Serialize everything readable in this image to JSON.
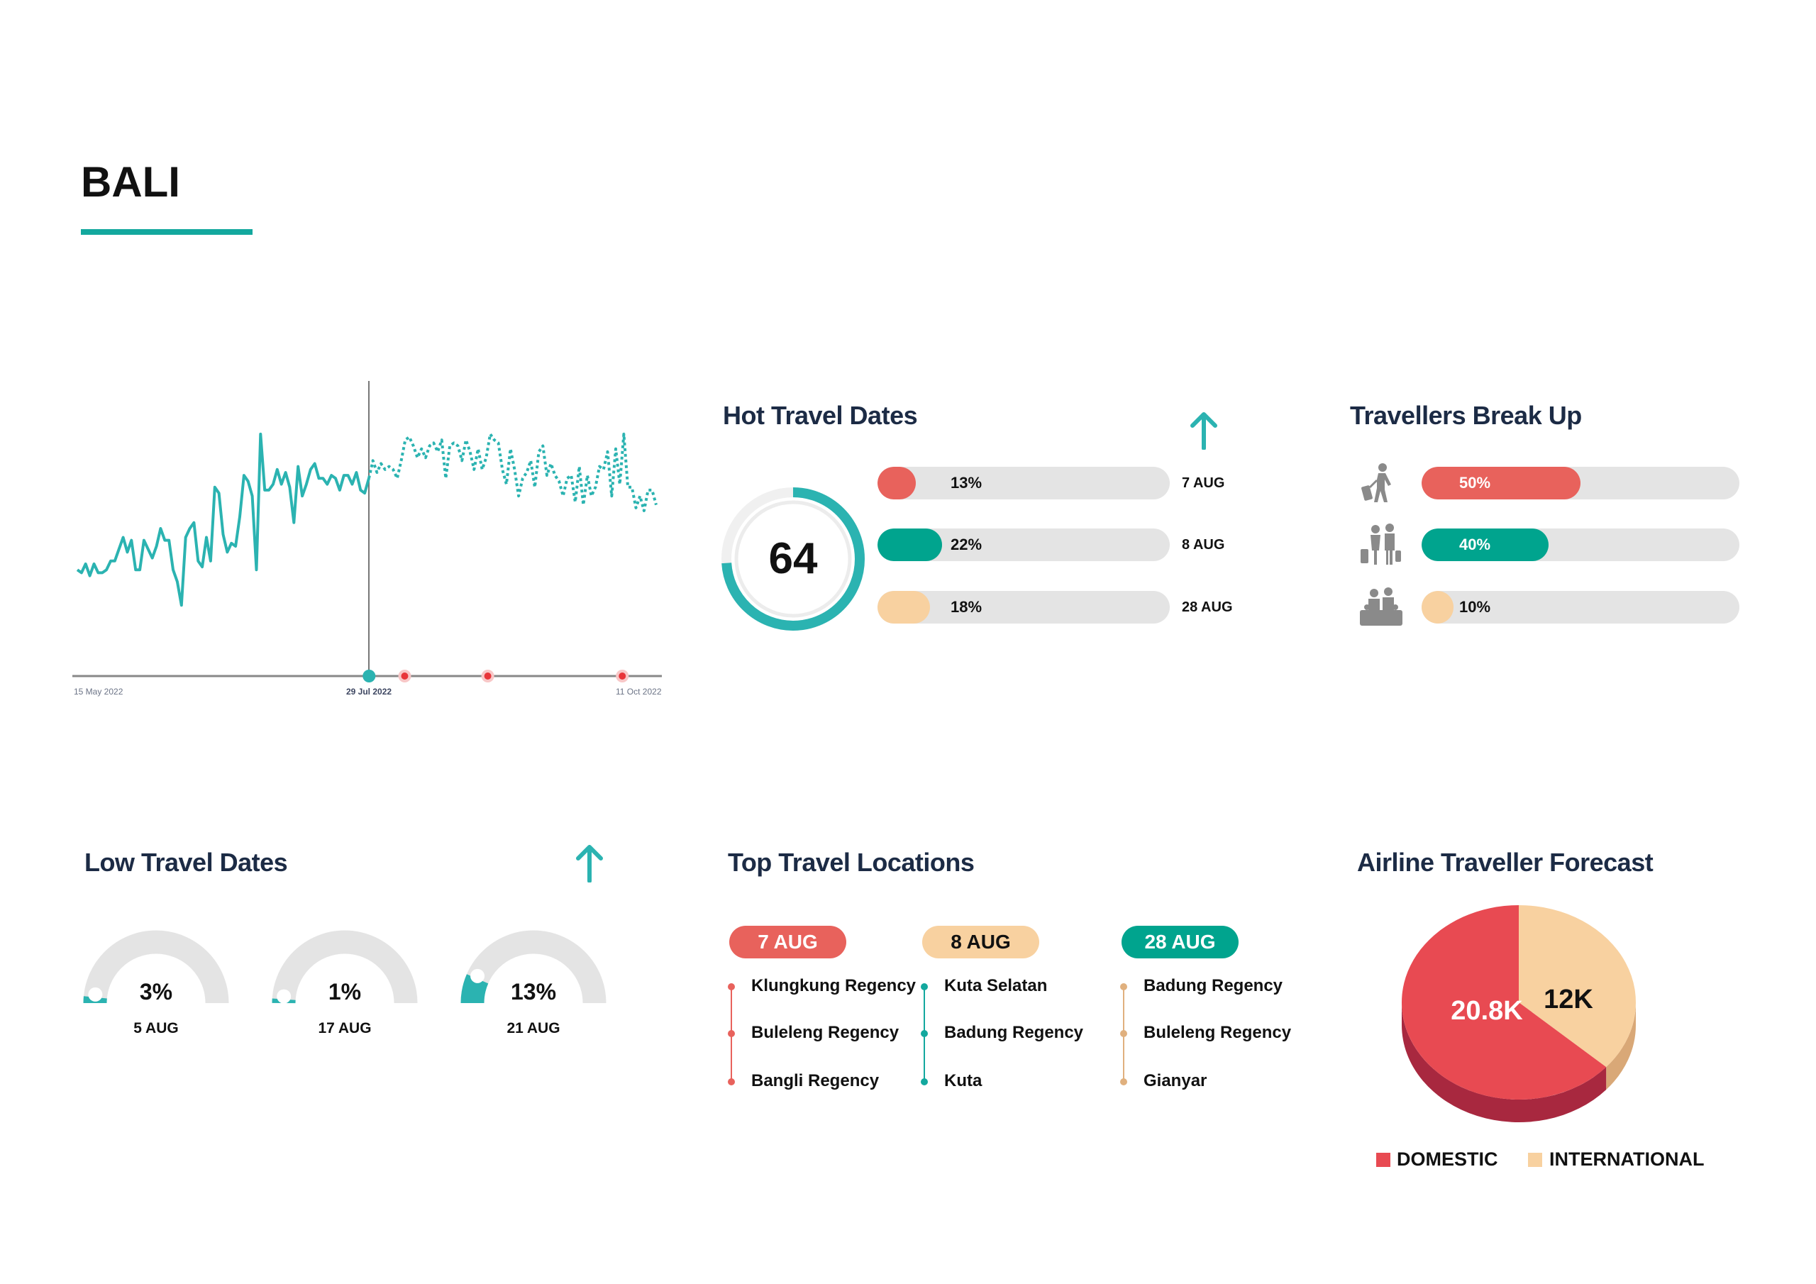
{
  "page": {
    "title": "BALI"
  },
  "colors": {
    "teal": "#2bb3b1",
    "dark_teal": "#00a48e",
    "red": "#e8625c",
    "peach": "#f8d1a0",
    "peach_dot": "#e0b07e",
    "track": "#e4e4e4",
    "navy": "#1c2b45"
  },
  "chart_data": {
    "type": "line",
    "x_ticks": [
      "15 May 2022",
      "29 Jul 2022",
      "11 Oct 2022"
    ],
    "xlim": [
      "15 May 2022",
      "11 Oct 2022"
    ],
    "grid": false,
    "series": [
      {
        "style": "solid",
        "color": "#2bb3b1",
        "x_range": [
          "15 May 2022",
          "29 Jul 2022"
        ],
        "values": [
          36,
          35,
          38,
          34,
          38,
          35,
          35,
          36,
          39,
          39,
          43,
          47,
          42,
          46,
          36,
          36,
          46,
          43,
          40,
          44,
          50,
          46,
          46,
          36,
          32,
          24,
          47,
          50,
          52,
          39,
          37,
          47,
          39,
          64,
          62,
          48,
          42,
          45,
          44,
          54,
          68,
          66,
          61,
          36,
          82,
          63,
          63,
          65,
          70,
          65,
          69,
          64,
          52,
          71,
          61,
          65,
          70,
          72,
          67,
          67,
          65,
          68,
          67,
          63,
          68,
          68,
          65,
          69,
          63,
          62,
          67
        ]
      },
      {
        "style": "dotted",
        "color": "#2bb3b1",
        "x_range": [
          "29 Jul 2022",
          "11 Oct 2022"
        ],
        "values": [
          67,
          73,
          69,
          72,
          70,
          71,
          70,
          67,
          73,
          80,
          81,
          78,
          74,
          77,
          74,
          78,
          79,
          76,
          80,
          67,
          78,
          79,
          78,
          73,
          80,
          76,
          70,
          77,
          70,
          74,
          82,
          80,
          79,
          70,
          65,
          77,
          70,
          61,
          67,
          69,
          73,
          64,
          76,
          78,
          68,
          72,
          68,
          66,
          61,
          67,
          68,
          59,
          71,
          58,
          68,
          61,
          64,
          71,
          70,
          76,
          61,
          77,
          65,
          82,
          64,
          64,
          57,
          61,
          56,
          63,
          63,
          58
        ]
      }
    ],
    "markers": [
      {
        "x": "29 Jul 2022",
        "color": "#2bb3b1"
      },
      {
        "x": "7 Aug 2022",
        "color": "#e8353a"
      },
      {
        "x": "28 Aug 2022",
        "color": "#e8353a"
      },
      {
        "x": "1 Oct 2022",
        "color": "#e8353a"
      }
    ]
  },
  "hot": {
    "title": "Hot Travel Dates",
    "arrow_icon": "arrow-up-icon",
    "total": "64",
    "ring_fraction": 0.74,
    "items": [
      {
        "pct": "13%",
        "value": 13,
        "date": "7 AUG",
        "color": "#e8625c"
      },
      {
        "pct": "22%",
        "value": 22,
        "date": "8 AUG",
        "color": "#00a48e"
      },
      {
        "pct": "18%",
        "value": 18,
        "date": "28 AUG",
        "color": "#f8d1a0"
      }
    ]
  },
  "travellers": {
    "title": "Travellers Break Up",
    "items": [
      {
        "icon": "solo-traveller-icon",
        "pct": "50%",
        "value": 50,
        "color": "#e8625c",
        "text_color": "#ffffff"
      },
      {
        "icon": "couple-traveller-icon",
        "pct": "40%",
        "value": 40,
        "color": "#00a48e",
        "text_color": "#ffffff"
      },
      {
        "icon": "family-traveller-icon",
        "pct": "10%",
        "value": 10,
        "color": "#f8d1a0",
        "text_color": "#111111"
      }
    ]
  },
  "low": {
    "title": "Low Travel Dates",
    "arrow_icon": "arrow-up-icon",
    "items": [
      {
        "pct": "3%",
        "value": 3,
        "date": "5 AUG"
      },
      {
        "pct": "1%",
        "value": 1,
        "date": "17 AUG"
      },
      {
        "pct": "13%",
        "value": 13,
        "date": "21 AUG"
      }
    ]
  },
  "locations": {
    "title": "Top Travel Locations",
    "groups": [
      {
        "date": "7 AUG",
        "pill_color": "#e8625c",
        "text_color": "#ffffff",
        "dot_color": "#e8625c",
        "places": [
          "Klungkung Regency",
          "Buleleng Regency",
          "Bangli Regency"
        ]
      },
      {
        "date": "8 AUG",
        "pill_color": "#f8d1a0",
        "text_color": "#111111",
        "dot_color": "#13a89e",
        "places": [
          "Kuta Selatan",
          "Badung Regency",
          "Kuta"
        ]
      },
      {
        "date": "28 AUG",
        "pill_color": "#00a48e",
        "text_color": "#ffffff",
        "dot_color": "#e0b07e",
        "places": [
          "Badung Regency",
          "Buleleng Regency",
          "Gianyar"
        ]
      }
    ]
  },
  "forecast": {
    "title": "Airline Traveller Forecast",
    "chart": {
      "type": "pie",
      "style": "3d",
      "slices": [
        {
          "name": "DOMESTIC",
          "value": 20.8,
          "label": "20.8K",
          "color": "#e84a52",
          "side_color": "#a8283f",
          "label_color": "#ffffff"
        },
        {
          "name": "INTERNATIONAL",
          "value": 12,
          "label": "12K",
          "color": "#f8d1a0",
          "side_color": "#d9a877",
          "label_color": "#111111"
        }
      ],
      "legend": "bottom"
    }
  }
}
